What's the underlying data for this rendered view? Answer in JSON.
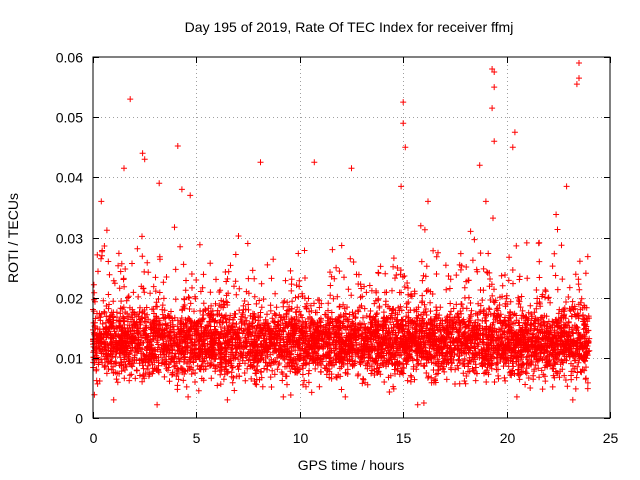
{
  "chart_data": {
    "type": "scatter",
    "title": "Day 195 of 2019, Rate Of TEC Index for receiver ffmj",
    "xlabel": "GPS time / hours",
    "ylabel": "ROTI / TECUs",
    "xlim": [
      0,
      25
    ],
    "ylim": [
      0,
      0.06
    ],
    "xticks": [
      0,
      5,
      10,
      15,
      20,
      25
    ],
    "xtick_labels": [
      "0",
      "5",
      "10",
      "15",
      "20",
      "25"
    ],
    "yticks": [
      0,
      0.01,
      0.02,
      0.03,
      0.04,
      0.05,
      0.06
    ],
    "ytick_labels": [
      "0",
      "0.01",
      "0.02",
      "0.03",
      "0.04",
      "0.05",
      "0.06"
    ],
    "grid": true,
    "marker": "plus",
    "series": [
      {
        "name": "ROTI",
        "color": "#ff0000",
        "x_range": [
          0,
          24
        ],
        "typical_range": [
          0.005,
          0.02
        ],
        "points": [
          [
            1.8,
            0.053
          ],
          [
            4.1,
            0.0452
          ],
          [
            15.0,
            0.0525
          ],
          [
            15.0,
            0.049
          ],
          [
            15.1,
            0.045
          ],
          [
            19.3,
            0.058
          ],
          [
            19.4,
            0.0575
          ],
          [
            19.4,
            0.055
          ],
          [
            19.3,
            0.0515
          ],
          [
            19.4,
            0.046
          ],
          [
            23.5,
            0.059
          ],
          [
            23.5,
            0.0565
          ],
          [
            23.4,
            0.0555
          ],
          [
            20.4,
            0.0475
          ],
          [
            20.3,
            0.045
          ],
          [
            10.7,
            0.0425
          ],
          [
            8.1,
            0.0425
          ],
          [
            12.5,
            0.0415
          ],
          [
            1.5,
            0.0415
          ],
          [
            2.4,
            0.044
          ],
          [
            2.5,
            0.043
          ],
          [
            3.2,
            0.039
          ],
          [
            4.3,
            0.038
          ],
          [
            4.7,
            0.037
          ],
          [
            18.7,
            0.042
          ],
          [
            22.9,
            0.0385
          ],
          [
            14.9,
            0.0385
          ],
          [
            0.4,
            0.036
          ],
          [
            16.2,
            0.036
          ],
          [
            19.0,
            0.036
          ],
          [
            3.1,
            0.0022
          ],
          [
            15.7,
            0.0022
          ],
          [
            16.0,
            0.0025
          ],
          [
            1.0,
            0.003
          ],
          [
            4.6,
            0.0035
          ],
          [
            9.2,
            0.0035
          ],
          [
            12.2,
            0.0035
          ],
          [
            20.5,
            0.0035
          ],
          [
            23.2,
            0.003
          ],
          [
            6.5,
            0.003
          ]
        ]
      }
    ]
  }
}
